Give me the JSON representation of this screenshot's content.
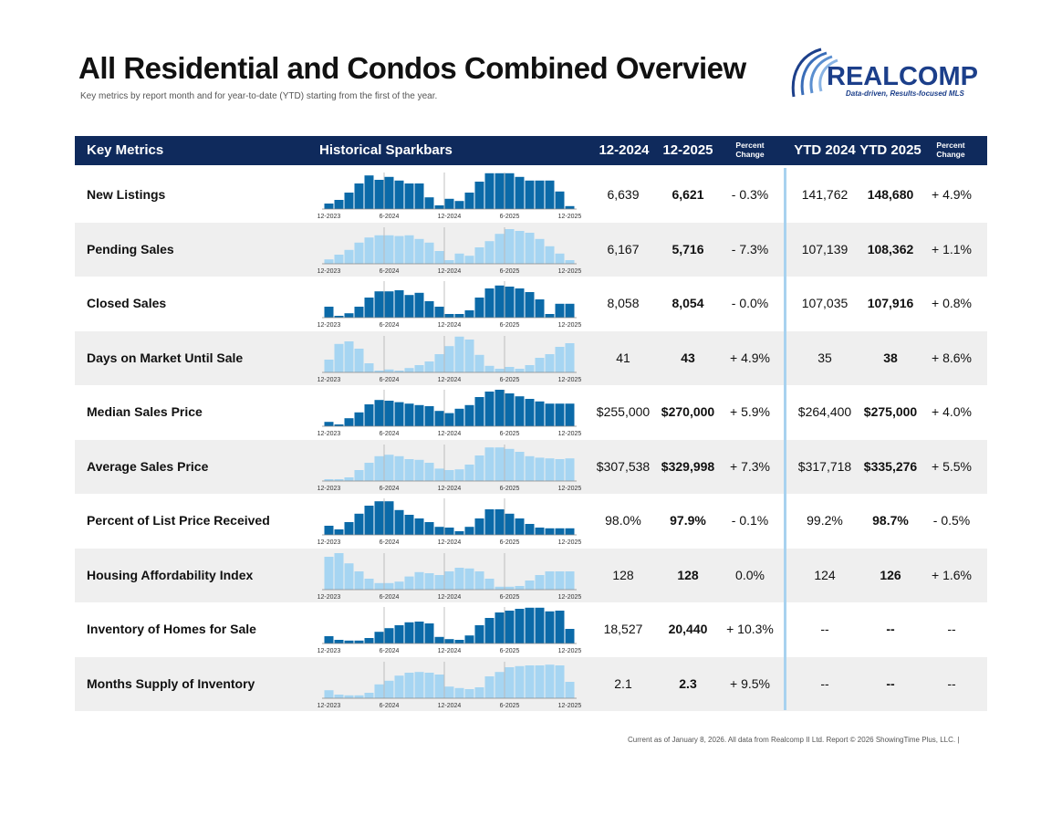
{
  "header": {
    "title": "All Residential and Condos Combined Overview",
    "subtitle": "Key metrics by report month and for year-to-date (YTD) starting from the first of the year.",
    "logo_name": "REALCOMP",
    "logo_tagline": "Data-driven, Results-focused MLS"
  },
  "table": {
    "columns": [
      "Key Metrics",
      "Historical Sparkbars",
      "12-2024",
      "12-2025",
      "Percent Change",
      "YTD 2024",
      "YTD 2025",
      "Percent Change"
    ],
    "sparkbar_labels": [
      "12-2023",
      "6-2024",
      "12-2024",
      "6-2025",
      "12-2025"
    ],
    "rows": [
      {
        "metric": "New Listings",
        "sparkbars": [
          15,
          25,
          45,
          70,
          92,
          80,
          88,
          78,
          70,
          70,
          32,
          10,
          28,
          22,
          45,
          75,
          98,
          98,
          98,
          88,
          78,
          78,
          78,
          48,
          8
        ],
        "cells": [
          "6,639",
          "6,621",
          "- 0.3%",
          "141,762",
          "148,680",
          "+ 4.9%"
        ]
      },
      {
        "metric": "Pending Sales",
        "sparkbars": [
          12,
          25,
          38,
          58,
          72,
          78,
          78,
          76,
          78,
          68,
          58,
          35,
          10,
          28,
          22,
          45,
          62,
          82,
          95,
          90,
          85,
          68,
          48,
          28,
          10
        ],
        "cells": [
          "6,167",
          "5,716",
          "- 7.3%",
          "107,139",
          "108,362",
          "+ 1.1%"
        ]
      },
      {
        "metric": "Closed Sales",
        "sparkbars": [
          30,
          5,
          12,
          30,
          55,
          72,
          72,
          75,
          62,
          68,
          45,
          30,
          10,
          10,
          20,
          55,
          80,
          88,
          85,
          80,
          70,
          50,
          10,
          38,
          38
        ],
        "cells": [
          "8,058",
          "8,054",
          "- 0.0%",
          "107,035",
          "107,916",
          "+ 0.8%"
        ]
      },
      {
        "metric": "Days on Market Until Sale",
        "sparkbars": [
          35,
          78,
          85,
          65,
          25,
          5,
          8,
          5,
          12,
          20,
          30,
          50,
          72,
          98,
          90,
          48,
          18,
          10,
          15,
          10,
          20,
          40,
          50,
          70,
          80
        ],
        "cells": [
          "41",
          "43",
          "+ 4.9%",
          "35",
          "38",
          "+ 8.6%"
        ]
      },
      {
        "metric": "Median Sales Price",
        "sparkbars": [
          12,
          5,
          22,
          38,
          60,
          72,
          70,
          66,
          62,
          58,
          55,
          42,
          36,
          48,
          58,
          80,
          95,
          100,
          90,
          82,
          75,
          68,
          62,
          62,
          62
        ],
        "cells": [
          "$255,000",
          "$270,000",
          "+ 5.9%",
          "$264,400",
          "$275,000",
          "+ 4.0%"
        ]
      },
      {
        "metric": "Average Sales Price",
        "sparkbars": [
          5,
          5,
          10,
          30,
          50,
          68,
          72,
          68,
          60,
          58,
          50,
          34,
          30,
          32,
          45,
          70,
          92,
          92,
          88,
          80,
          68,
          64,
          62,
          60,
          62
        ],
        "cells": [
          "$307,538",
          "$329,998",
          "+ 7.3%",
          "$317,718",
          "$335,276",
          "+ 5.5%"
        ]
      },
      {
        "metric": "Percent of List Price Received",
        "sparkbars": [
          25,
          15,
          35,
          58,
          80,
          92,
          92,
          68,
          55,
          45,
          35,
          22,
          20,
          10,
          22,
          45,
          70,
          70,
          58,
          45,
          30,
          20,
          18,
          18,
          18
        ],
        "cells": [
          "98.0%",
          "97.9%",
          "- 0.1%",
          "99.2%",
          "98.7%",
          "- 0.5%"
        ]
      },
      {
        "metric": "Housing Affordability Index",
        "sparkbars": [
          90,
          100,
          72,
          50,
          30,
          18,
          18,
          22,
          36,
          48,
          45,
          40,
          50,
          60,
          58,
          50,
          30,
          8,
          8,
          10,
          25,
          40,
          50,
          50,
          50
        ],
        "cells": [
          "128",
          "128",
          "0.0%",
          "124",
          "126",
          "+ 1.6%"
        ]
      },
      {
        "metric": "Inventory of Homes for Sale",
        "sparkbars": [
          20,
          10,
          8,
          8,
          15,
          32,
          42,
          50,
          58,
          60,
          55,
          18,
          12,
          10,
          22,
          50,
          70,
          85,
          90,
          95,
          98,
          98,
          88,
          90,
          40
        ],
        "cells": [
          "18,527",
          "20,440",
          "+ 10.3%",
          "--",
          "--",
          "--"
        ]
      },
      {
        "metric": "Months Supply of Inventory",
        "sparkbars": [
          22,
          10,
          8,
          8,
          15,
          38,
          48,
          62,
          70,
          72,
          70,
          65,
          32,
          28,
          25,
          30,
          60,
          72,
          85,
          88,
          90,
          90,
          92,
          90,
          45
        ],
        "cells": [
          "2.1",
          "2.3",
          "+ 9.5%",
          "--",
          "--",
          "--"
        ]
      }
    ]
  },
  "footer": "Current as of January 8, 2026. All data from Realcomp II Ltd. Report © 2026 ShowingTime Plus, LLC.  |"
}
